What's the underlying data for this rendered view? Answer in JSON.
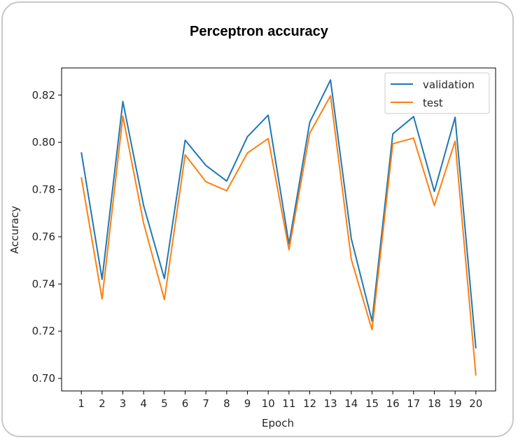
{
  "chart_data": {
    "type": "line",
    "title": "Perceptron accuracy",
    "xlabel": "Epoch",
    "ylabel": "Accuracy",
    "x": [
      1,
      2,
      3,
      4,
      5,
      6,
      7,
      8,
      9,
      10,
      11,
      12,
      13,
      14,
      15,
      16,
      17,
      18,
      19,
      20
    ],
    "xticks": [
      "1",
      "2",
      "3",
      "4",
      "5",
      "6",
      "7",
      "8",
      "9",
      "10",
      "11",
      "12",
      "13",
      "14",
      "15",
      "16",
      "17",
      "18",
      "19",
      "20"
    ],
    "yticks": [
      "0.70",
      "0.72",
      "0.74",
      "0.76",
      "0.78",
      "0.80",
      "0.82"
    ],
    "ylim": [
      0.6947,
      0.8315
    ],
    "xlim": [
      0.05,
      20.95
    ],
    "legend_position": "upper-right",
    "grid": false,
    "series": [
      {
        "name": "validation",
        "color": "#1f77b4",
        "values": [
          0.7958,
          0.742,
          0.8173,
          0.7732,
          0.7423,
          0.8009,
          0.7902,
          0.7836,
          0.8024,
          0.8115,
          0.7569,
          0.8085,
          0.8264,
          0.7592,
          0.7243,
          0.8036,
          0.8109,
          0.7792,
          0.8106,
          0.7127
        ]
      },
      {
        "name": "test",
        "color": "#ff7f0e",
        "values": [
          0.7852,
          0.7337,
          0.8111,
          0.7657,
          0.7334,
          0.7947,
          0.7833,
          0.7795,
          0.7955,
          0.8016,
          0.7545,
          0.8039,
          0.8197,
          0.7505,
          0.7206,
          0.7994,
          0.8018,
          0.7732,
          0.8005,
          0.7012
        ]
      }
    ]
  }
}
